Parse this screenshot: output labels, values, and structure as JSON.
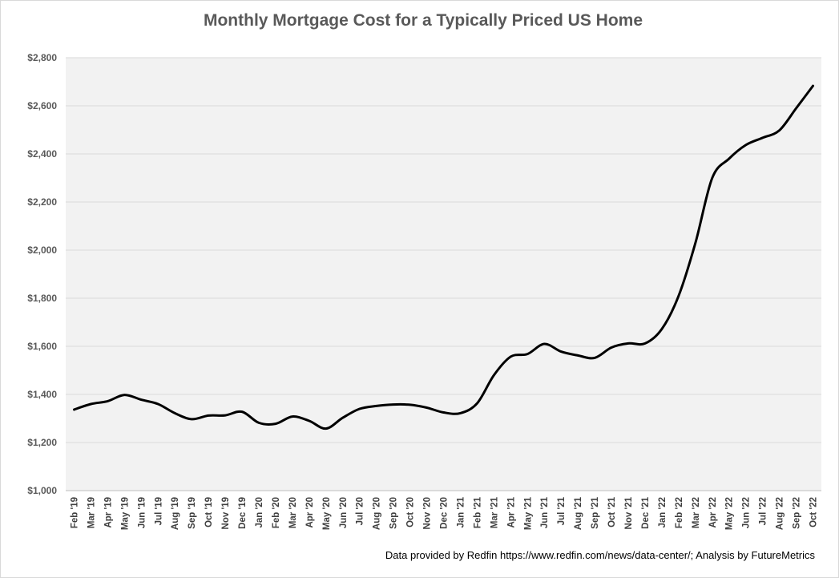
{
  "chart_data": {
    "type": "line",
    "title": "Monthly Mortgage Cost for a Typically Priced US Home",
    "xlabel": "",
    "ylabel": "",
    "ylim": [
      1000,
      2800
    ],
    "yticks": [
      "$1,000",
      "$1,200",
      "$1,400",
      "$1,600",
      "$1,800",
      "$2,000",
      "$2,200",
      "$2,400",
      "$2,600",
      "$2,800"
    ],
    "ytick_values": [
      1000,
      1200,
      1400,
      1600,
      1800,
      2000,
      2200,
      2400,
      2600,
      2800
    ],
    "grid": true,
    "legend": "none",
    "series_color": "#000000",
    "plot_background": "#f2f2f2",
    "categories": [
      "Feb '19",
      "Mar '19",
      "Apr '19",
      "May '19",
      "Jun '19",
      "Jul '19",
      "Aug '19",
      "Sep '19",
      "Oct '19",
      "Nov '19",
      "Dec '19",
      "Jan '20",
      "Feb '20",
      "Mar '20",
      "Apr '20",
      "May '20",
      "Jun '20",
      "Jul '20",
      "Aug '20",
      "Sep '20",
      "Oct '20",
      "Nov '20",
      "Dec '20",
      "Jan '21",
      "Feb '21",
      "Mar '21",
      "Apr '21",
      "May '21",
      "Jun '21",
      "Jul '21",
      "Aug '21",
      "Sep '21",
      "Oct '21",
      "Nov '21",
      "Dec '21",
      "Jan '22",
      "Feb '22",
      "Mar '22",
      "Apr '22",
      "May '22",
      "Jun '22",
      "Jul '22",
      "Aug '22",
      "Sep '22",
      "Oct '22"
    ],
    "series": [
      {
        "name": "Monthly Mortgage Cost",
        "values": [
          1337,
          1360,
          1372,
          1398,
          1378,
          1360,
          1322,
          1297,
          1312,
          1313,
          1328,
          1282,
          1278,
          1308,
          1290,
          1258,
          1303,
          1340,
          1352,
          1358,
          1357,
          1345,
          1325,
          1322,
          1363,
          1480,
          1557,
          1568,
          1610,
          1578,
          1562,
          1552,
          1595,
          1612,
          1612,
          1672,
          1810,
          2030,
          2300,
          2380,
          2437,
          2467,
          2498,
          2590,
          2683
        ]
      }
    ]
  },
  "source_note": "Data provided by Redfin https://www.redfin.com/news/data-center/; Analysis by FutureMetrics"
}
